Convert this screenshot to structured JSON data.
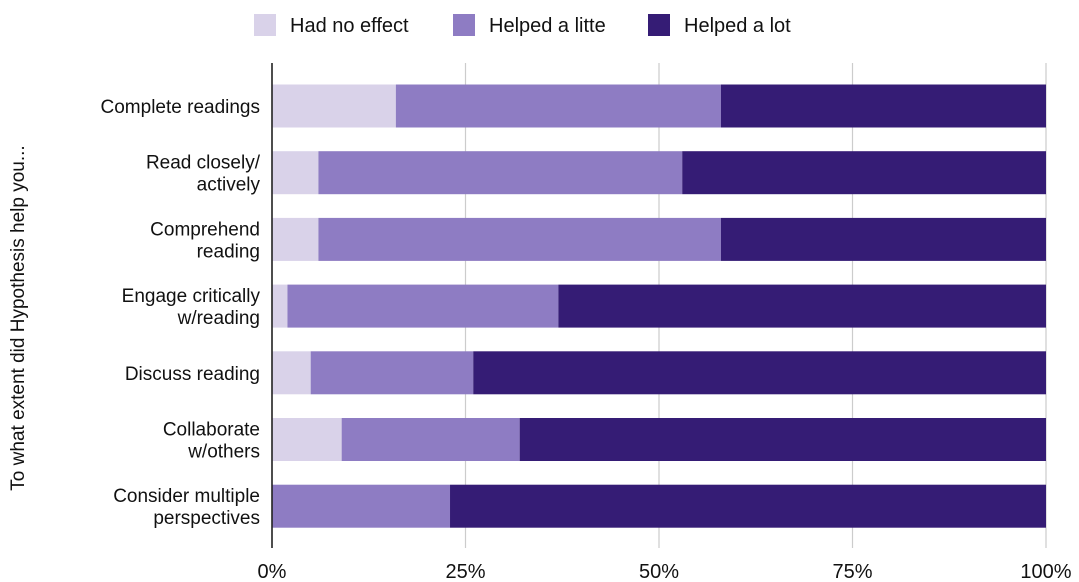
{
  "chart_data": {
    "type": "bar",
    "orientation": "horizontal",
    "stacked": true,
    "ylabel": "To what extent did Hypothesis help you...",
    "xlabel": "",
    "xlim": [
      0,
      100
    ],
    "xticks": [
      "0%",
      "25%",
      "50%",
      "75%",
      "100%"
    ],
    "xtick_values": [
      0,
      25,
      50,
      75,
      100
    ],
    "grid": true,
    "legend_position": "top-center",
    "categories": [
      [
        "Complete readings"
      ],
      [
        "Read closely/",
        "actively"
      ],
      [
        "Comprehend",
        "reading"
      ],
      [
        "Engage critically",
        "w/reading"
      ],
      [
        "Discuss reading"
      ],
      [
        "Collaborate",
        "w/others"
      ],
      [
        "Consider multiple",
        "perspectives"
      ]
    ],
    "series": [
      {
        "name": "Had no effect",
        "color": "#d9d2e9",
        "values": [
          16,
          6,
          6,
          2,
          5,
          9,
          0
        ]
      },
      {
        "name": "Helped a litte",
        "color": "#8e7cc3",
        "values": [
          42,
          47,
          52,
          35,
          21,
          23,
          23
        ]
      },
      {
        "name": "Helped a lot",
        "color": "#351c75",
        "values": [
          42,
          47,
          42,
          63,
          74,
          68,
          77
        ]
      }
    ]
  }
}
